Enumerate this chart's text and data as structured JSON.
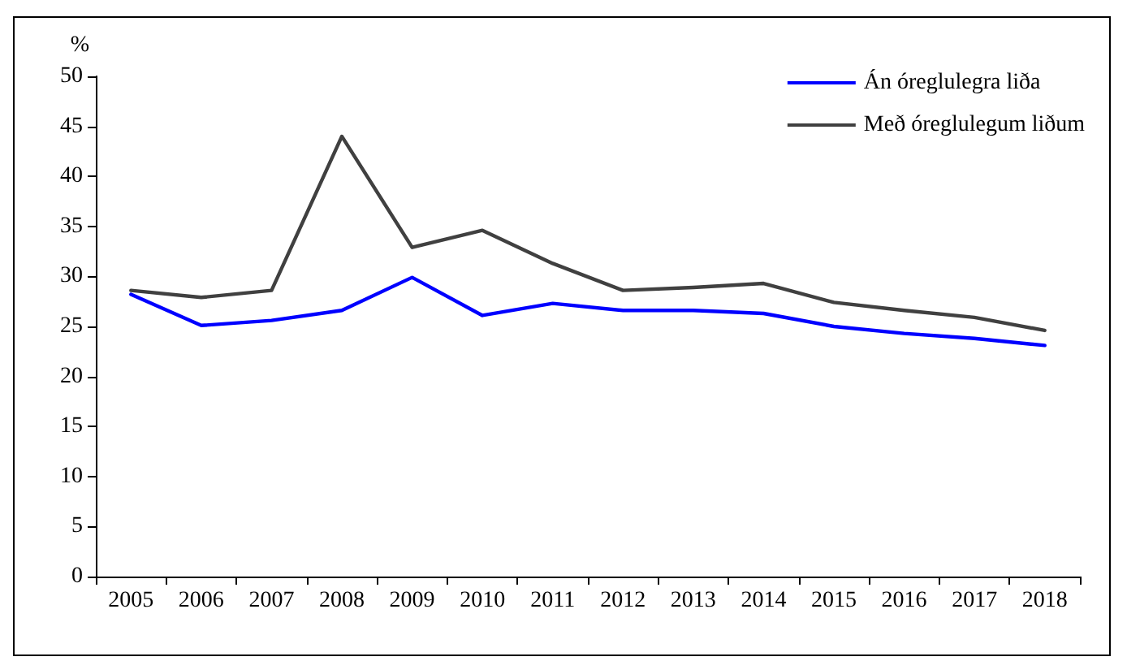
{
  "chart_data": {
    "type": "line",
    "ylabel": "%",
    "categories": [
      "2005",
      "2006",
      "2007",
      "2008",
      "2009",
      "2010",
      "2011",
      "2012",
      "2013",
      "2014",
      "2015",
      "2016",
      "2017",
      "2018"
    ],
    "series": [
      {
        "name": "Án óreglulegra liða",
        "color": "#0000ff",
        "values": [
          28.2,
          25.1,
          25.6,
          26.6,
          29.9,
          26.1,
          27.3,
          26.6,
          26.6,
          26.3,
          25.0,
          24.3,
          23.8,
          23.1
        ]
      },
      {
        "name": "Með óreglulegum liðum",
        "color": "#404040",
        "values": [
          28.6,
          27.9,
          28.6,
          44.0,
          32.9,
          34.6,
          31.3,
          28.6,
          28.9,
          29.3,
          27.4,
          26.6,
          25.9,
          24.6
        ]
      }
    ],
    "ylim": [
      0,
      50
    ],
    "yticks": [
      0,
      5,
      10,
      15,
      20,
      25,
      30,
      35,
      40,
      45,
      50
    ],
    "grid": false,
    "legend": "top right",
    "marker": "none",
    "line_style": "solid"
  }
}
